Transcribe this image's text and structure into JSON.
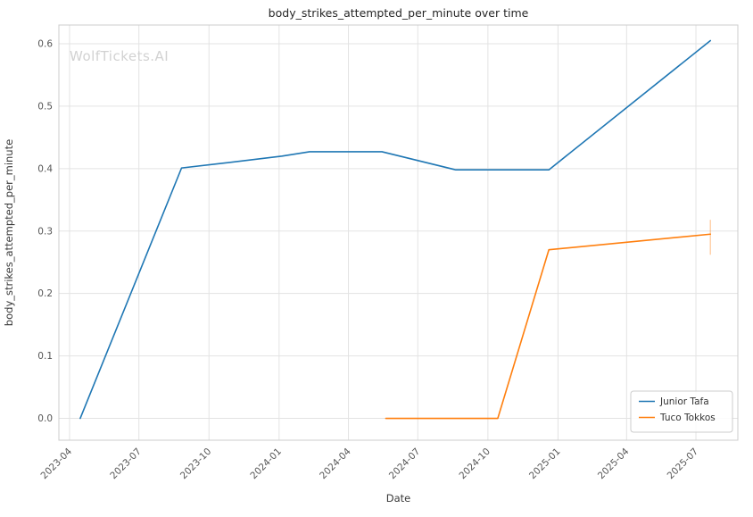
{
  "figure": {
    "watermark": "WolfTickets.AI"
  },
  "chart_data": {
    "type": "line",
    "title": "body_strikes_attempted_per_minute over time",
    "xlabel": "Date",
    "ylabel": "body_strikes_attempted_per_minute",
    "xlim": [
      "2023-03-18",
      "2025-08-25"
    ],
    "ylim": [
      -0.035,
      0.63
    ],
    "x_ticks": [
      "2023-04",
      "2023-07",
      "2023-10",
      "2024-01",
      "2024-04",
      "2024-07",
      "2024-10",
      "2025-01",
      "2025-04",
      "2025-07"
    ],
    "y_ticks": [
      0.0,
      0.1,
      0.2,
      0.3,
      0.4,
      0.5,
      0.6
    ],
    "grid": true,
    "legend_position": "lower right",
    "colors": {
      "grid": "#e3e3e3",
      "spine": "#cccccc"
    },
    "series": [
      {
        "name": "Junior Tafa",
        "color": "#1f77b4",
        "points": [
          [
            "2023-04-15",
            0.0
          ],
          [
            "2023-08-26",
            0.401
          ],
          [
            "2023-10-15",
            0.408
          ],
          [
            "2024-01-05",
            0.42
          ],
          [
            "2024-02-10",
            0.427
          ],
          [
            "2024-05-15",
            0.427
          ],
          [
            "2024-08-20",
            0.398
          ],
          [
            "2024-12-20",
            0.398
          ],
          [
            "2025-07-20",
            0.605
          ]
        ]
      },
      {
        "name": "Tuco Tokkos",
        "color": "#ff7f0e",
        "points": [
          [
            "2024-05-20",
            0.0
          ],
          [
            "2024-10-14",
            0.0
          ],
          [
            "2024-12-20",
            0.27
          ],
          [
            "2025-07-20",
            0.295
          ]
        ],
        "error_bar": {
          "x": "2025-07-20",
          "low": 0.262,
          "high": 0.318
        }
      }
    ]
  }
}
